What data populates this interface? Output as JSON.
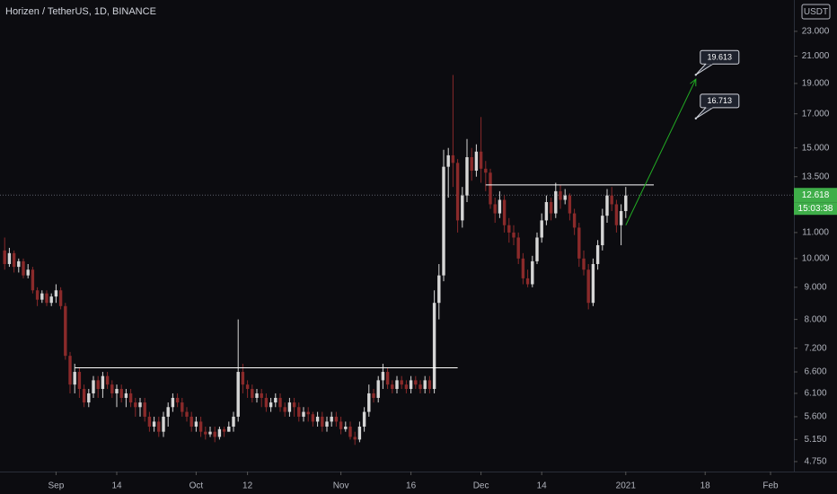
{
  "chart_data": {
    "type": "candlestick",
    "title": "Horizen / TetherUS, 1D, BINANCE",
    "currency_label": "USDT",
    "log_scale": true,
    "up_color": "#d6d6d6",
    "down_color": "#8a2a2a",
    "x": [
      "2020-08-21",
      "2020-08-22",
      "2020-08-23",
      "2020-08-24",
      "2020-08-25",
      "2020-08-26",
      "2020-08-27",
      "2020-08-28",
      "2020-08-29",
      "2020-08-30",
      "2020-08-31",
      "2020-09-01",
      "2020-09-02",
      "2020-09-03",
      "2020-09-04",
      "2020-09-05",
      "2020-09-06",
      "2020-09-07",
      "2020-09-08",
      "2020-09-09",
      "2020-09-10",
      "2020-09-11",
      "2020-09-12",
      "2020-09-13",
      "2020-09-14",
      "2020-09-15",
      "2020-09-16",
      "2020-09-17",
      "2020-09-18",
      "2020-09-19",
      "2020-09-20",
      "2020-09-21",
      "2020-09-22",
      "2020-09-23",
      "2020-09-24",
      "2020-09-25",
      "2020-09-26",
      "2020-09-27",
      "2020-09-28",
      "2020-09-29",
      "2020-09-30",
      "2020-10-01",
      "2020-10-02",
      "2020-10-03",
      "2020-10-04",
      "2020-10-05",
      "2020-10-06",
      "2020-10-07",
      "2020-10-08",
      "2020-10-09",
      "2020-10-10",
      "2020-10-11",
      "2020-10-12",
      "2020-10-13",
      "2020-10-14",
      "2020-10-15",
      "2020-10-16",
      "2020-10-17",
      "2020-10-18",
      "2020-10-19",
      "2020-10-20",
      "2020-10-21",
      "2020-10-22",
      "2020-10-23",
      "2020-10-24",
      "2020-10-25",
      "2020-10-26",
      "2020-10-27",
      "2020-10-28",
      "2020-10-29",
      "2020-10-30",
      "2020-10-31",
      "2020-11-01",
      "2020-11-02",
      "2020-11-03",
      "2020-11-04",
      "2020-11-05",
      "2020-11-06",
      "2020-11-07",
      "2020-11-08",
      "2020-11-09",
      "2020-11-10",
      "2020-11-11",
      "2020-11-12",
      "2020-11-13",
      "2020-11-14",
      "2020-11-15",
      "2020-11-16",
      "2020-11-17",
      "2020-11-18",
      "2020-11-19",
      "2020-11-20",
      "2020-11-21",
      "2020-11-22",
      "2020-11-23",
      "2020-11-24",
      "2020-11-25",
      "2020-11-26",
      "2020-11-27",
      "2020-11-28",
      "2020-11-29",
      "2020-11-30",
      "2020-12-01",
      "2020-12-02",
      "2020-12-03",
      "2020-12-04",
      "2020-12-05",
      "2020-12-06",
      "2020-12-07",
      "2020-12-08",
      "2020-12-09",
      "2020-12-10",
      "2020-12-11",
      "2020-12-12",
      "2020-12-13",
      "2020-12-14",
      "2020-12-15",
      "2020-12-16",
      "2020-12-17",
      "2020-12-18",
      "2020-12-19",
      "2020-12-20",
      "2020-12-21",
      "2020-12-22",
      "2020-12-23",
      "2020-12-24",
      "2020-12-25",
      "2020-12-26",
      "2020-12-27",
      "2020-12-28",
      "2020-12-29",
      "2020-12-30",
      "2020-12-31",
      "2021-01-01"
    ],
    "open": [
      10.3,
      9.8,
      10.2,
      9.7,
      9.9,
      9.4,
      9.6,
      8.9,
      8.6,
      8.8,
      8.5,
      8.7,
      8.9,
      8.4,
      7.0,
      6.3,
      6.6,
      6.2,
      5.9,
      6.1,
      6.4,
      6.2,
      6.5,
      6.3,
      6.1,
      6.2,
      6.0,
      6.1,
      5.9,
      5.8,
      5.9,
      5.6,
      5.4,
      5.5,
      5.3,
      5.6,
      5.8,
      6.0,
      5.9,
      5.7,
      5.6,
      5.4,
      5.5,
      5.3,
      5.25,
      5.3,
      5.2,
      5.35,
      5.3,
      5.4,
      5.6,
      6.6,
      6.3,
      6.2,
      6.0,
      6.1,
      6.0,
      5.8,
      5.9,
      6.0,
      5.8,
      5.7,
      5.9,
      5.8,
      5.6,
      5.7,
      5.65,
      5.5,
      5.6,
      5.4,
      5.5,
      5.6,
      5.5,
      5.35,
      5.4,
      5.2,
      5.15,
      5.4,
      5.7,
      6.1,
      6.0,
      6.4,
      6.6,
      6.3,
      6.2,
      6.4,
      6.3,
      6.2,
      6.4,
      6.3,
      6.2,
      6.4,
      6.2,
      8.5,
      9.4,
      14.0,
      14.6,
      14.2,
      11.5,
      12.6,
      14.5,
      13.8,
      14.8,
      13.9,
      13.7,
      12.2,
      11.8,
      12.4,
      11.3,
      11.0,
      10.8,
      10.0,
      9.3,
      9.1,
      9.9,
      10.8,
      11.5,
      12.3,
      11.8,
      12.8,
      12.4,
      12.6,
      11.8,
      11.2,
      10.0,
      9.6,
      8.5,
      9.8,
      10.5,
      11.7,
      12.6,
      12.2,
      11.3,
      11.9
    ],
    "high": [
      10.8,
      10.4,
      10.3,
      10.0,
      10.0,
      9.8,
      9.7,
      9.0,
      8.9,
      8.9,
      8.8,
      9.1,
      9.0,
      8.5,
      7.1,
      6.8,
      6.7,
      6.3,
      6.2,
      6.5,
      6.5,
      6.6,
      6.6,
      6.4,
      6.3,
      6.3,
      6.2,
      6.2,
      6.0,
      6.0,
      6.0,
      5.7,
      5.6,
      5.6,
      5.7,
      5.9,
      6.1,
      6.1,
      6.0,
      5.8,
      5.7,
      5.6,
      5.6,
      5.4,
      5.4,
      5.4,
      5.4,
      5.4,
      5.5,
      5.7,
      8.0,
      6.8,
      6.4,
      6.3,
      6.2,
      6.2,
      6.1,
      6.0,
      6.1,
      6.1,
      5.9,
      6.0,
      6.0,
      5.9,
      5.8,
      5.8,
      5.7,
      5.7,
      5.7,
      5.6,
      5.7,
      5.7,
      5.6,
      5.5,
      5.5,
      5.3,
      5.5,
      5.8,
      6.3,
      6.2,
      6.5,
      6.8,
      6.7,
      6.4,
      6.5,
      6.5,
      6.4,
      6.5,
      6.5,
      6.4,
      6.5,
      6.5,
      8.9,
      9.8,
      14.9,
      15.0,
      19.6,
      14.4,
      13.0,
      15.5,
      15.0,
      15.2,
      16.8,
      14.3,
      13.9,
      12.5,
      12.8,
      12.6,
      11.6,
      11.3,
      11.0,
      10.2,
      9.6,
      10.1,
      11.0,
      11.8,
      12.6,
      12.5,
      13.2,
      13.1,
      12.9,
      12.7,
      12.0,
      11.4,
      10.3,
      9.8,
      10.0,
      10.7,
      12.0,
      12.9,
      13.0,
      12.4,
      12.2,
      13.0
    ],
    "low": [
      9.6,
      9.7,
      9.5,
      9.5,
      9.3,
      9.3,
      8.8,
      8.4,
      8.5,
      8.4,
      8.4,
      8.5,
      8.3,
      6.9,
      6.1,
      6.1,
      6.0,
      5.8,
      5.8,
      6.0,
      6.0,
      6.0,
      6.2,
      6.0,
      5.8,
      5.9,
      5.8,
      5.8,
      5.6,
      5.6,
      5.5,
      5.3,
      5.3,
      5.2,
      5.2,
      5.4,
      5.7,
      5.8,
      5.6,
      5.5,
      5.3,
      5.3,
      5.2,
      5.15,
      5.2,
      5.1,
      5.15,
      5.2,
      5.3,
      5.3,
      5.5,
      6.1,
      6.0,
      5.9,
      5.9,
      5.8,
      5.7,
      5.7,
      5.8,
      5.7,
      5.6,
      5.6,
      5.6,
      5.5,
      5.5,
      5.5,
      5.4,
      5.4,
      5.3,
      5.3,
      5.4,
      5.4,
      5.25,
      5.3,
      5.15,
      5.05,
      5.1,
      5.3,
      5.6,
      5.9,
      5.9,
      6.2,
      6.2,
      6.1,
      6.1,
      6.2,
      6.1,
      6.1,
      6.2,
      6.1,
      6.1,
      6.1,
      6.1,
      8.0,
      9.2,
      12.5,
      13.0,
      11.0,
      11.2,
      12.3,
      13.3,
      13.5,
      13.2,
      12.8,
      12.0,
      11.4,
      11.6,
      11.0,
      10.6,
      10.5,
      9.8,
      9.1,
      9.0,
      9.0,
      9.8,
      10.6,
      11.3,
      11.5,
      11.6,
      12.0,
      12.2,
      11.5,
      10.9,
      9.7,
      9.4,
      8.3,
      8.4,
      9.6,
      10.3,
      11.4,
      11.9,
      11.0,
      10.5,
      11.6
    ],
    "close": [
      9.8,
      10.2,
      9.7,
      9.9,
      9.4,
      9.6,
      8.9,
      8.6,
      8.8,
      8.5,
      8.7,
      8.9,
      8.4,
      7.0,
      6.3,
      6.6,
      6.2,
      5.9,
      6.1,
      6.4,
      6.2,
      6.5,
      6.3,
      6.1,
      6.2,
      6.0,
      6.1,
      5.9,
      5.8,
      5.9,
      5.6,
      5.4,
      5.5,
      5.3,
      5.6,
      5.8,
      6.0,
      5.9,
      5.7,
      5.6,
      5.4,
      5.5,
      5.3,
      5.25,
      5.3,
      5.2,
      5.35,
      5.3,
      5.4,
      5.6,
      6.6,
      6.3,
      6.2,
      6.0,
      6.1,
      6.0,
      5.8,
      5.9,
      6.0,
      5.8,
      5.7,
      5.9,
      5.8,
      5.6,
      5.7,
      5.65,
      5.5,
      5.6,
      5.4,
      5.5,
      5.6,
      5.5,
      5.35,
      5.4,
      5.2,
      5.15,
      5.4,
      5.7,
      6.1,
      6.0,
      6.4,
      6.6,
      6.3,
      6.2,
      6.4,
      6.3,
      6.2,
      6.4,
      6.3,
      6.2,
      6.4,
      6.2,
      8.5,
      9.4,
      14.0,
      14.6,
      14.2,
      11.5,
      12.6,
      14.5,
      13.8,
      14.8,
      13.9,
      13.7,
      12.2,
      11.8,
      12.4,
      11.3,
      11.0,
      10.8,
      10.0,
      9.3,
      9.1,
      9.9,
      10.8,
      11.5,
      12.3,
      11.8,
      12.8,
      12.4,
      12.6,
      11.8,
      11.2,
      10.0,
      9.6,
      8.5,
      9.8,
      10.5,
      11.7,
      12.6,
      12.2,
      11.3,
      11.9,
      12.6
    ],
    "xlim": [
      "2020-08-20",
      "2021-02-06"
    ],
    "xticks": [
      {
        "value": "2020-09-01",
        "label": "Sep"
      },
      {
        "value": "2020-09-14",
        "label": "14"
      },
      {
        "value": "2020-10-01",
        "label": "Oct"
      },
      {
        "value": "2020-10-12",
        "label": "12"
      },
      {
        "value": "2020-11-01",
        "label": "Nov"
      },
      {
        "value": "2020-11-16",
        "label": "16"
      },
      {
        "value": "2020-12-01",
        "label": "Dec"
      },
      {
        "value": "2020-12-14",
        "label": "14"
      },
      {
        "value": "2021-01-01",
        "label": "2021"
      },
      {
        "value": "2021-01-18",
        "label": "18"
      },
      {
        "value": "2021-02-01",
        "label": "Feb"
      }
    ],
    "ylim": [
      4.58,
      25.8
    ],
    "yticks": [
      {
        "value": 23,
        "label": "23.000"
      },
      {
        "value": 21,
        "label": "21.000"
      },
      {
        "value": 19,
        "label": "19.000"
      },
      {
        "value": 17,
        "label": "17.000"
      },
      {
        "value": 15,
        "label": "15.000"
      },
      {
        "value": 13.5,
        "label": "13.500"
      },
      {
        "value": 11,
        "label": "11.000"
      },
      {
        "value": 10,
        "label": "10.000"
      },
      {
        "value": 9,
        "label": "9.000"
      },
      {
        "value": 8,
        "label": "8.000"
      },
      {
        "value": 7.2,
        "label": "7.200"
      },
      {
        "value": 6.6,
        "label": "6.600"
      },
      {
        "value": 6.1,
        "label": "6.100"
      },
      {
        "value": 5.6,
        "label": "5.600"
      },
      {
        "value": 5.15,
        "label": "5.150"
      },
      {
        "value": 4.75,
        "label": "4.750"
      }
    ],
    "last_price": 12.618,
    "last_price_color": "#3fae49",
    "countdown": "15:03:38",
    "levels": [
      {
        "price": 6.7,
        "from": "2020-09-05",
        "to": "2020-11-26"
      },
      {
        "price": 13.1,
        "from": "2020-12-02",
        "to": "2021-01-07"
      }
    ],
    "arrow": {
      "from": {
        "date": "2021-01-01",
        "price": 11.3
      },
      "to": {
        "date": "2021-01-16",
        "price": 19.3
      },
      "color": "#22ab24"
    },
    "annotations": [
      {
        "value": 19.613,
        "date": "2021-01-16"
      },
      {
        "value": 16.713,
        "date": "2021-01-16"
      }
    ]
  }
}
